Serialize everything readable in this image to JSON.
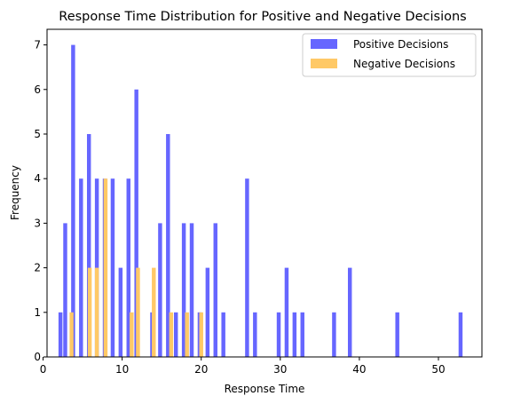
{
  "chart_data": {
    "type": "bar",
    "title": "Response Time Distribution for Positive and Negative Decisions",
    "xlabel": "Response Time",
    "ylabel": "Frequency",
    "xlim": [
      0.5,
      55.5
    ],
    "ylim": [
      0,
      7.35
    ],
    "xticks": [
      0,
      10,
      20,
      30,
      40,
      50
    ],
    "yticks": [
      0,
      1,
      2,
      3,
      4,
      5,
      6,
      7
    ],
    "grid": false,
    "legend_position": "top-right",
    "bar_width": 0.5,
    "series": [
      {
        "name": "Positive Decisions",
        "color": "#6666ff",
        "bins": [
          [
            2.2,
            1
          ],
          [
            2.8,
            3
          ],
          [
            3.8,
            7
          ],
          [
            4.8,
            4
          ],
          [
            5.8,
            5
          ],
          [
            6.8,
            4
          ],
          [
            7.8,
            4
          ],
          [
            8.8,
            4
          ],
          [
            9.8,
            2
          ],
          [
            10.8,
            4
          ],
          [
            11.8,
            6
          ],
          [
            13.8,
            1
          ],
          [
            14.8,
            3
          ],
          [
            15.8,
            5
          ],
          [
            16.8,
            1
          ],
          [
            17.8,
            3
          ],
          [
            18.8,
            3
          ],
          [
            19.8,
            1
          ],
          [
            20.8,
            2
          ],
          [
            21.8,
            3
          ],
          [
            22.8,
            1
          ],
          [
            25.8,
            4
          ],
          [
            26.8,
            1
          ],
          [
            29.8,
            1
          ],
          [
            30.8,
            2
          ],
          [
            31.8,
            1
          ],
          [
            32.8,
            1
          ],
          [
            36.8,
            1
          ],
          [
            38.8,
            2
          ],
          [
            44.8,
            1
          ],
          [
            52.8,
            1
          ]
        ]
      },
      {
        "name": "Negative Decisions",
        "color": "#ffc966",
        "bins": [
          [
            3.6,
            1
          ],
          [
            5.9,
            2
          ],
          [
            6.8,
            2
          ],
          [
            7.9,
            4
          ],
          [
            11.2,
            1
          ],
          [
            12.0,
            2
          ],
          [
            14.0,
            2
          ],
          [
            16.2,
            1
          ],
          [
            18.2,
            1
          ],
          [
            20.0,
            1
          ]
        ]
      }
    ]
  }
}
